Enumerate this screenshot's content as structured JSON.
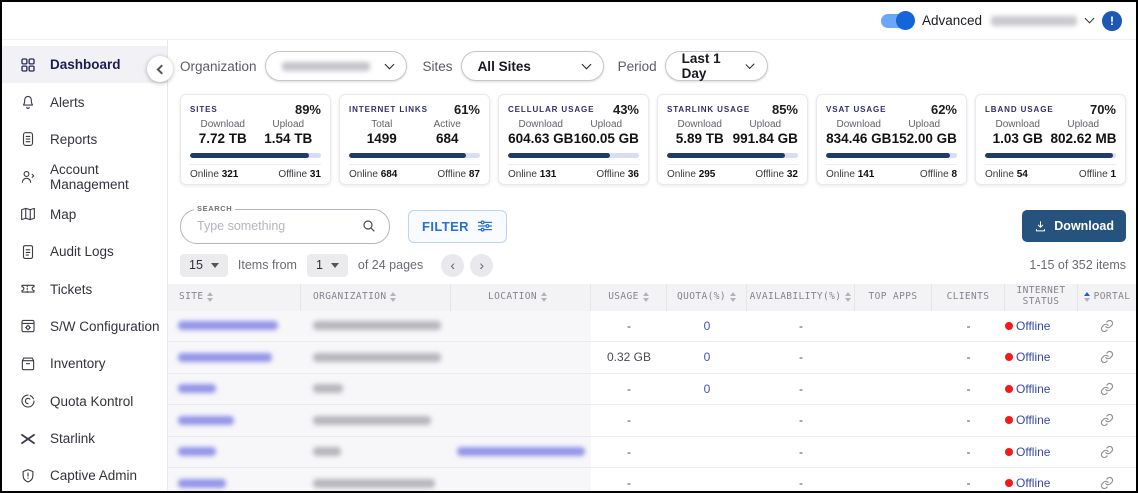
{
  "colors": {
    "accent_blue": "#2a6fdb",
    "download_button": "#26527e",
    "card_title": "#302e70",
    "progress_fill": "#223a66",
    "progress_track": "#d9ddf1",
    "offline_dot": "#f51818",
    "offline_text": "#3748ab",
    "toggle_blue": "#1565d8"
  },
  "topbar": {
    "advanced_label": "Advanced",
    "toggle_on": true,
    "user_name_redacted": true,
    "info_icon_glyph": "!"
  },
  "sidebar": {
    "items": [
      {
        "label": "Dashboard",
        "icon": "grid-icon",
        "active": true
      },
      {
        "label": "Alerts",
        "icon": "bell-icon",
        "active": false
      },
      {
        "label": "Reports",
        "icon": "report-icon",
        "active": false
      },
      {
        "label": "Account Management",
        "icon": "user-icon",
        "active": false
      },
      {
        "label": "Map",
        "icon": "map-icon",
        "active": false
      },
      {
        "label": "Audit Logs",
        "icon": "document-icon",
        "active": false
      },
      {
        "label": "Tickets",
        "icon": "ticket-icon",
        "active": false
      },
      {
        "label": "S/W Configuration",
        "icon": "window-gear-icon",
        "active": false
      },
      {
        "label": "Inventory",
        "icon": "box-icon",
        "active": false
      },
      {
        "label": "Quota Kontrol",
        "icon": "donut-chart-icon",
        "active": false
      },
      {
        "label": "Starlink",
        "icon": "starlink-x-icon",
        "active": false
      },
      {
        "label": "Captive Admin",
        "icon": "shield-icon",
        "active": false
      }
    ]
  },
  "filters": {
    "organization": {
      "label": "Organization",
      "value_redacted": true
    },
    "sites": {
      "label": "Sites",
      "value": "All Sites"
    },
    "period": {
      "label": "Period",
      "value": "Last 1 Day"
    }
  },
  "cards": [
    {
      "title": "SITES",
      "percent": "89%",
      "col1_label": "Download",
      "col1_value": "7.72 TB",
      "col2_label": "Upload",
      "col2_value": "1.54 TB",
      "bar_pct": 91,
      "online_label": "Online",
      "online": "321",
      "offline_label": "Offline",
      "offline": "31"
    },
    {
      "title": "INTERNET LINKS",
      "percent": "61%",
      "col1_label": "Total",
      "col1_value": "1499",
      "col2_label": "Active",
      "col2_value": "684",
      "bar_pct": 89,
      "online_label": "Online",
      "online": "684",
      "offline_label": "Offline",
      "offline": "87"
    },
    {
      "title": "CELLULAR USAGE",
      "percent": "43%",
      "col1_label": "Download",
      "col1_value": "604.63 GB",
      "col2_label": "Upload",
      "col2_value": "160.05 GB",
      "bar_pct": 78,
      "online_label": "Online",
      "online": "131",
      "offline_label": "Offline",
      "offline": "36"
    },
    {
      "title": "STARLINK USAGE",
      "percent": "85%",
      "col1_label": "Download",
      "col1_value": "5.89 TB",
      "col2_label": "Upload",
      "col2_value": "991.84 GB",
      "bar_pct": 90,
      "online_label": "Online",
      "online": "295",
      "offline_label": "Offline",
      "offline": "32"
    },
    {
      "title": "VSAT USAGE",
      "percent": "62%",
      "col1_label": "Download",
      "col1_value": "834.46 GB",
      "col2_label": "Upload",
      "col2_value": "152.00 GB",
      "bar_pct": 95,
      "online_label": "Online",
      "online": "141",
      "offline_label": "Offline",
      "offline": "8"
    },
    {
      "title": "LBAND USAGE",
      "percent": "70%",
      "col1_label": "Download",
      "col1_value": "1.03 GB",
      "col2_label": "Upload",
      "col2_value": "802.62 MB",
      "bar_pct": 98,
      "online_label": "Online",
      "online": "54",
      "offline_label": "Offline",
      "offline": "1"
    }
  ],
  "toolbar": {
    "search_label": "SEARCH",
    "search_placeholder": "Type something",
    "filter_label": "FILTER",
    "download_label": "Download"
  },
  "pagination": {
    "page_size": "15",
    "items_from_label": "Items from",
    "page": "1",
    "of_pages_label": "of 24 pages",
    "prev_label": "‹",
    "next_label": "›",
    "range_label": "1-15 of 352 items"
  },
  "table": {
    "columns": [
      {
        "label": "SITE",
        "sortable": true
      },
      {
        "label": "ORGANIZATION",
        "sortable": true
      },
      {
        "label": "LOCATION",
        "sortable": true
      },
      {
        "label": "USAGE",
        "sortable": true
      },
      {
        "label": "QUOTA(%)",
        "sortable": true
      },
      {
        "label": "AVAILABILITY(%)",
        "sortable": true
      },
      {
        "label": "TOP APPS",
        "sortable": false
      },
      {
        "label": "CLIENTS",
        "sortable": false
      },
      {
        "label": "INTERNET STATUS",
        "sortable": false
      },
      {
        "label": "PORTAL",
        "sortable": true,
        "sorted": "asc"
      }
    ],
    "rows": [
      {
        "site_redacted": true,
        "org_redacted": true,
        "location": "",
        "usage": "-",
        "quota": "0",
        "availability": "-",
        "top_apps": "",
        "clients": "-",
        "status": "Offline",
        "portal": "link-icon"
      },
      {
        "site_redacted": true,
        "org_redacted": true,
        "location": "",
        "usage": "0.32 GB",
        "quota": "0",
        "availability": "-",
        "top_apps": "",
        "clients": "-",
        "status": "Offline",
        "portal": "link-icon"
      },
      {
        "site_redacted": true,
        "org_redacted": true,
        "location": "",
        "usage": "-",
        "quota": "0",
        "availability": "-",
        "top_apps": "",
        "clients": "-",
        "status": "Offline",
        "portal": "link-icon"
      },
      {
        "site_redacted": true,
        "org_redacted": true,
        "location": "",
        "usage": "-",
        "quota": "",
        "availability": "-",
        "top_apps": "",
        "clients": "-",
        "status": "Offline",
        "portal": "link-icon"
      },
      {
        "site_redacted": true,
        "org_redacted": true,
        "location_link_redacted": true,
        "usage": "-",
        "quota": "",
        "availability": "-",
        "top_apps": "",
        "clients": "-",
        "status": "Offline",
        "portal": "link-icon"
      },
      {
        "site_redacted": true,
        "org_redacted": true,
        "location": "",
        "usage": "-",
        "quota": "",
        "availability": "-",
        "top_apps": "",
        "clients": "-",
        "status": "Offline",
        "portal": "link-icon"
      }
    ]
  }
}
